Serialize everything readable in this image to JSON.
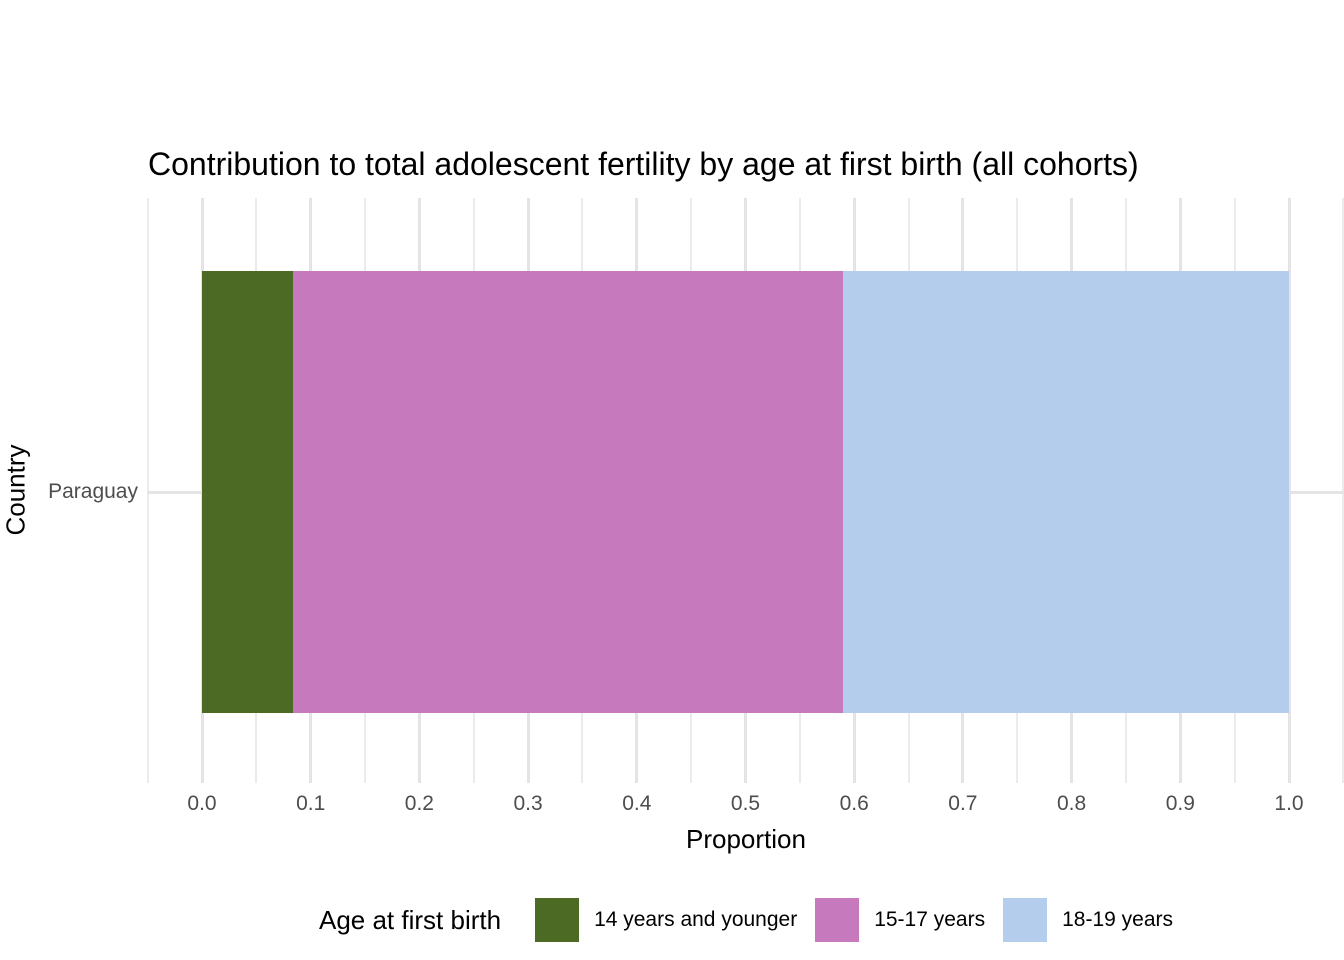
{
  "chart_data": {
    "type": "bar",
    "orientation": "horizontal",
    "stacked": true,
    "title": "Contribution to total adolescent fertility by age at first birth (all cohorts)",
    "xlabel": "Proportion",
    "ylabel": "Country",
    "categories": [
      "Paraguay"
    ],
    "series": [
      {
        "name": "14 years and younger",
        "color": "#4C6A23",
        "values": [
          0.084
        ]
      },
      {
        "name": "15-17 years",
        "color": "#C679BD",
        "values": [
          0.506
        ]
      },
      {
        "name": "18-19 years",
        "color": "#B4CDEC",
        "values": [
          0.41
        ]
      }
    ],
    "xlim": [
      0,
      1
    ],
    "x_tick_labels": [
      "0.0",
      "0.1",
      "0.2",
      "0.3",
      "0.4",
      "0.5",
      "0.6",
      "0.7",
      "0.8",
      "0.9",
      "1.0"
    ],
    "x_tick_values": [
      0,
      0.1,
      0.2,
      0.3,
      0.4,
      0.5,
      0.6,
      0.7,
      0.8,
      0.9,
      1.0
    ],
    "x_minor_step": 0.05,
    "grid": "on",
    "legend_title": "Age at first birth",
    "legend_position": "bottom"
  },
  "colors": {
    "background": "#FFFFFF",
    "grid_major": "#E4E4E4",
    "grid_minor": "#EBEBEB",
    "tick_text": "#4D4D4D",
    "title_text": "#000000"
  }
}
